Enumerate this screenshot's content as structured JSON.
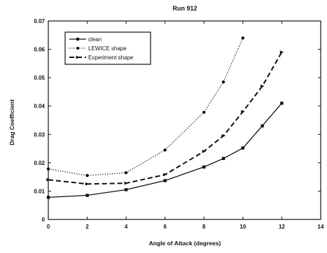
{
  "chart_data": {
    "type": "line",
    "title": "Run  912",
    "xlabel": "Angle  of  Attack  (degrees)",
    "ylabel": "Drag  Coefficient",
    "xlim": [
      0,
      14
    ],
    "ylim": [
      0,
      0.07
    ],
    "x_ticks": [
      "0",
      "2",
      "4",
      "6",
      "8",
      "10",
      "12",
      "14"
    ],
    "y_ticks": [
      "0",
      "0.01",
      "0.02",
      "0.03",
      "0.04",
      "0.05",
      "0.06",
      "0.07"
    ],
    "grid": false,
    "legend_position": "top-left",
    "series": [
      {
        "name": "clean",
        "style": "solid",
        "color": "#111111",
        "x": [
          0,
          2,
          4,
          6,
          8,
          9,
          10,
          11,
          12
        ],
        "y": [
          0.0078,
          0.0085,
          0.0105,
          0.0137,
          0.0185,
          0.0215,
          0.0252,
          0.033,
          0.041
        ]
      },
      {
        "name": "LEWICE shape",
        "style": "dotted",
        "color": "#111111",
        "x": [
          0,
          2,
          4,
          6,
          8,
          9,
          10
        ],
        "y": [
          0.0178,
          0.0155,
          0.0165,
          0.0245,
          0.0378,
          0.0485,
          0.064
        ]
      },
      {
        "name": "Experiment shape",
        "style": "dashed",
        "color": "#111111",
        "x": [
          0,
          2,
          4,
          6,
          8,
          9,
          10,
          11,
          12
        ],
        "y": [
          0.014,
          0.0125,
          0.0128,
          0.0158,
          0.024,
          0.0295,
          0.038,
          0.047,
          0.059
        ]
      }
    ]
  }
}
